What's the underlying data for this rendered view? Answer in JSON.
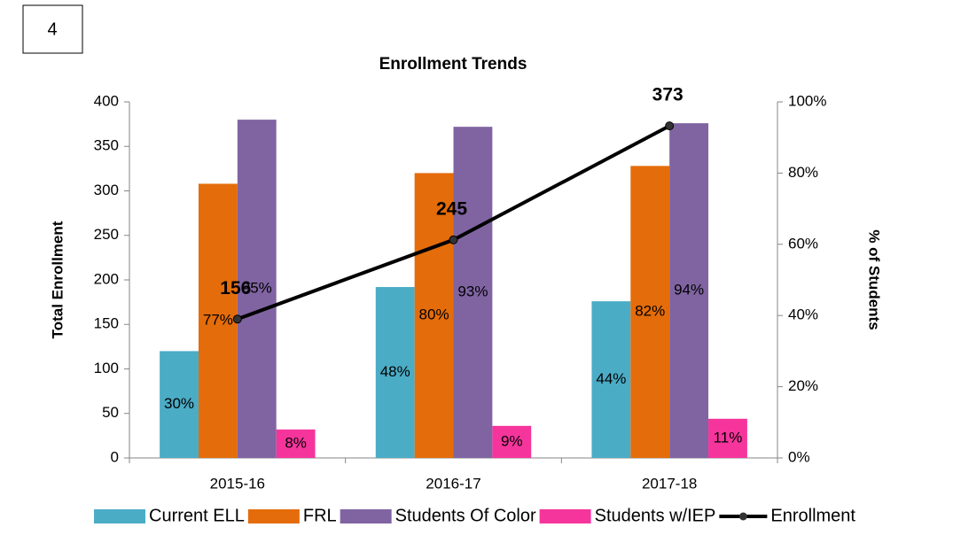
{
  "chart_data": {
    "type": "bar",
    "badge": "4",
    "title": "Enrollment Trends",
    "ylabel": "Total Enrollment",
    "y2label": "% of Students",
    "categories": [
      "2015-16",
      "2016-17",
      "2017-18"
    ],
    "ylim": [
      0,
      400
    ],
    "yticks": [
      0,
      50,
      100,
      150,
      200,
      250,
      300,
      350,
      400
    ],
    "y2lim": [
      0,
      100
    ],
    "y2ticks": [
      {
        "value": 0,
        "label": "0%"
      },
      {
        "value": 20,
        "label": "20%"
      },
      {
        "value": 40,
        "label": "40%"
      },
      {
        "value": 60,
        "label": "60%"
      },
      {
        "value": 80,
        "label": "80%"
      },
      {
        "value": 100,
        "label": "100%"
      }
    ],
    "legend": "bottom",
    "series": [
      {
        "name": "Current ELL",
        "type": "bar",
        "axis": "y2",
        "color": "#4bacc6",
        "values": [
          30,
          48,
          44
        ],
        "value_labels": [
          "30%",
          "48%",
          "44%"
        ]
      },
      {
        "name": "FRL",
        "type": "bar",
        "axis": "y2",
        "color": "#e46c0a",
        "values": [
          77,
          80,
          82
        ],
        "value_labels": [
          "77%",
          "80%",
          "82%"
        ]
      },
      {
        "name": "Students Of Color",
        "type": "bar",
        "axis": "y2",
        "color": "#8064a2",
        "values": [
          95,
          93,
          94
        ],
        "value_labels": [
          "95%",
          "93%",
          "94%"
        ]
      },
      {
        "name": "Students w/IEP",
        "type": "bar",
        "axis": "y2",
        "color": "#f5359c",
        "values": [
          8,
          9,
          11
        ],
        "value_labels": [
          "8%",
          "9%",
          "11%"
        ]
      },
      {
        "name": "Enrollment",
        "type": "line",
        "axis": "y",
        "color": "#000000",
        "values": [
          156,
          245,
          373
        ]
      }
    ]
  }
}
